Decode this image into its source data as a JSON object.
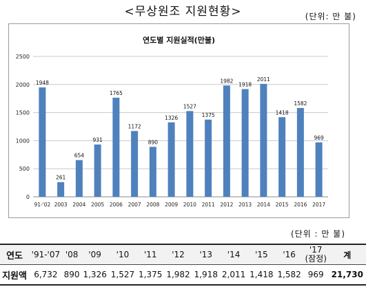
{
  "header": {
    "title": "<무상원조 지원현황>",
    "unit_top": "(단위: 만 불)",
    "unit_bottom": "(단위 : 만 불)"
  },
  "chart_data": {
    "type": "bar",
    "title": "연도별 지원실적(만불)",
    "categories": [
      "91-'02",
      "2003",
      "2004",
      "2005",
      "2006",
      "2007",
      "2008",
      "2009",
      "2010",
      "2011",
      "2012",
      "2013",
      "2014",
      "2015",
      "2016",
      "2017"
    ],
    "values": [
      1948,
      261,
      654,
      931,
      1765,
      1172,
      890,
      1326,
      1527,
      1375,
      1982,
      1918,
      2011,
      1418,
      1582,
      969
    ],
    "ylim": [
      0,
      2500
    ],
    "yticks": [
      0,
      500,
      1000,
      1500,
      2000,
      2500
    ],
    "grid": true,
    "bar_color": "#4f81bd"
  },
  "table": {
    "columns": [
      "연도",
      "'91-'07",
      "'08",
      "'09",
      "'10",
      "'11",
      "'12",
      "'13",
      "'14",
      "'15",
      "'16",
      "'17\n(잠정)",
      "계"
    ],
    "row": [
      "지원액",
      "6,732",
      "890",
      "1,326",
      "1,527",
      "1,375",
      "1,982",
      "1,918",
      "2,011",
      "1,418",
      "1,582",
      "969",
      "21,730"
    ]
  }
}
